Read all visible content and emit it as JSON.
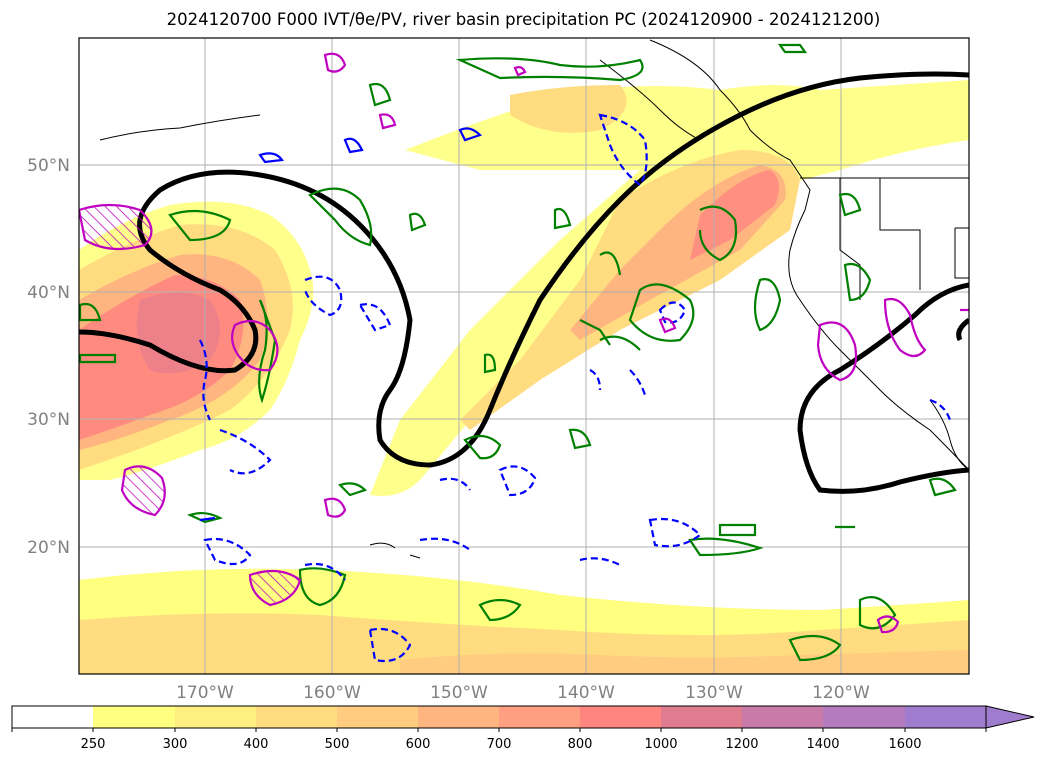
{
  "title": "2024120700 F000 IVT/θe/PV, river basin precipitation PC (2024120900 - 2024121200)",
  "map": {
    "lat_labels": [
      "50°N",
      "40°N",
      "30°N",
      "20°N"
    ],
    "lon_labels": [
      "170°W",
      "160°W",
      "150°W",
      "140°W",
      "130°W",
      "120°W"
    ],
    "layers": [
      {
        "id": "ivt-shading",
        "description": "IVT filled contours (yellow–red)"
      },
      {
        "id": "theta-e-contour",
        "color": "#000000"
      },
      {
        "id": "pv-positive-contours",
        "color": "#008000"
      },
      {
        "id": "pv-negative-contours",
        "color": "#0000ff",
        "dashed": true
      },
      {
        "id": "precip-pc-contours",
        "color": "#c000c0"
      },
      {
        "id": "coastlines",
        "color": "#000000"
      }
    ]
  },
  "colorbar": {
    "labels": [
      "250",
      "300",
      "400",
      "500",
      "600",
      "700",
      "800",
      "1000",
      "1200",
      "1400",
      "1600"
    ],
    "colors": [
      "#ffffff",
      "#ffff80",
      "#ffee80",
      "#ffdc80",
      "#ffcc80",
      "#ffb580",
      "#ff9e80",
      "#ff8680",
      "#e07c90",
      "#c87aa8",
      "#b47cbe",
      "#a07cce"
    ],
    "extend": "max"
  }
}
